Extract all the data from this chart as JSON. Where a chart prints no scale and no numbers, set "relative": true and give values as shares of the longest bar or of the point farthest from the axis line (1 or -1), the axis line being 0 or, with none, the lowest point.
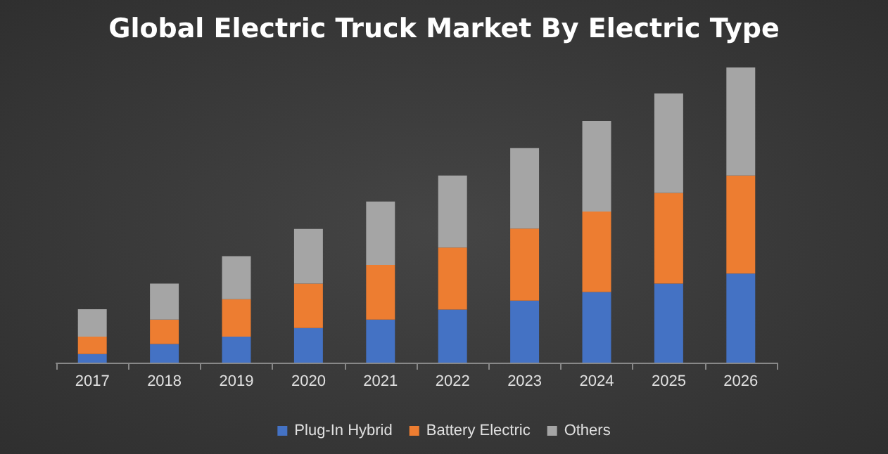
{
  "chart_data": {
    "type": "bar",
    "title": "Global Electric Truck Market By Electric Type",
    "categories": [
      "2017",
      "2018",
      "2019",
      "2020",
      "2021",
      "2022",
      "2023",
      "2024",
      "2025",
      "2026"
    ],
    "stacked": true,
    "relative": true,
    "legend": "bottom",
    "series": [
      {
        "name": "Plug-In Hybrid",
        "color": "#4472c4",
        "values": [
          0.029,
          0.063,
          0.088,
          0.117,
          0.146,
          0.18,
          0.21,
          0.239,
          0.268,
          0.302
        ]
      },
      {
        "name": "Battery Electric",
        "color": "#ed7d31",
        "values": [
          0.059,
          0.083,
          0.127,
          0.151,
          0.185,
          0.21,
          0.244,
          0.273,
          0.307,
          0.332
        ]
      },
      {
        "name": "Others",
        "color": "#a5a5a5",
        "values": [
          0.093,
          0.122,
          0.146,
          0.185,
          0.215,
          0.244,
          0.273,
          0.307,
          0.337,
          0.366
        ]
      }
    ]
  }
}
